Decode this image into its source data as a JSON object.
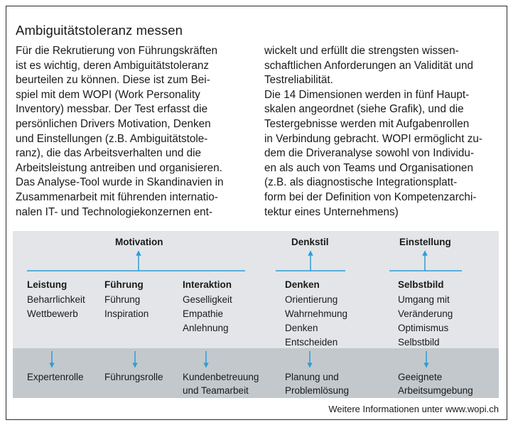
{
  "title": "Ambiguitätstoleranz messen",
  "body": {
    "left_lines": [
      "Für die Rekrutierung von Führungskräften",
      "ist es wichtig, deren Ambiguitätstoleranz",
      "beurteilen zu können. Diese ist zum Bei-",
      "spiel mit dem WOPI (Work Personality",
      "Inventory) messbar. Der Test erfasst die",
      "persönlichen Drivers Motivation, Denken",
      "und Einstellungen (z.B. Ambiguitätstole-",
      "ranz), die das Arbeitsverhalten und die",
      "Arbeitsleistung antreiben und organisieren.",
      "Das Analyse-Tool wurde in Skandinavien in",
      "Zusammenarbeit mit führenden internatio-",
      "nalen IT- und Technologiekonzernen ent-"
    ],
    "right_lines": [
      "wickelt und erfüllt die strengsten wissen-",
      "schaftlichen Anforderungen an Validität und",
      "Testreliabilität.",
      "Die 14 Dimensionen werden in fünf Haupt-",
      "skalen angeordnet (siehe Grafik), und die",
      "Testergebnisse werden mit Aufgabenrollen",
      "in Verbindung gebracht. WOPI ermöglicht zu-",
      "dem die Driveranalyse sowohl von Individu-",
      "en als auch von Teams und Organisationen",
      "(z.B. als diagnostische Integrationsplatt-",
      "form bei der Definition von Kompetenzarchi-",
      "tektur eines Unternehmens)"
    ]
  },
  "diagram": {
    "headers": {
      "motivation": "Motivation",
      "denkstil": "Denkstil",
      "einstellung": "Einstellung"
    },
    "categories": [
      {
        "title": "Leistung",
        "items": [
          "Beharrlichkeit",
          "Wettbewerb"
        ]
      },
      {
        "title": "Führung",
        "items": [
          "Führung",
          "Inspiration"
        ]
      },
      {
        "title": "Interaktion",
        "items": [
          "Geselligkeit",
          "Empathie",
          "Anlehnung"
        ]
      },
      {
        "title": "Denken",
        "items": [
          "Orientierung",
          "Wahrnehmung",
          "Denken",
          "Entscheiden"
        ]
      },
      {
        "title": "Selbstbild",
        "items": [
          "Umgang mit",
          "Veränderung",
          "Optimismus",
          "Selbstbild"
        ]
      }
    ],
    "roles": [
      [
        "Expertenrolle"
      ],
      [
        "Führungsrolle"
      ],
      [
        "Kundenbetreuung",
        "und Teamarbeit"
      ],
      [
        "Planung und",
        "Problemlösung"
      ],
      [
        "Geeignete",
        "Arbeitsumgebung"
      ]
    ],
    "arrow_color": "#2a9fd6"
  },
  "footer": "Weitere Informationen unter www.wopi.ch"
}
